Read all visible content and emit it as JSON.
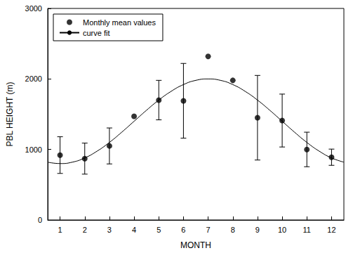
{
  "chart_data": {
    "type": "scatter",
    "xlabel": "MONTH",
    "ylabel": "PBL HEIGHT (m)",
    "xlim": [
      0.5,
      12.5
    ],
    "xticks": [
      1,
      2,
      3,
      4,
      5,
      6,
      7,
      8,
      9,
      10,
      11,
      12
    ],
    "ylim": [
      0,
      3000
    ],
    "yticks": [
      0,
      1000,
      2000,
      3000
    ],
    "grid": false,
    "legend": "upper left",
    "series": [
      {
        "name": "Monthly mean values",
        "type": "scatter",
        "color": "#000000",
        "marker": "circle",
        "x": [
          1,
          2,
          3,
          4,
          5,
          6,
          7,
          8,
          9,
          10,
          11,
          12
        ],
        "values": [
          920,
          870,
          1050,
          1470,
          1700,
          1690,
          2320,
          1980,
          1450,
          1410,
          1000,
          890
        ],
        "error": [
          260,
          220,
          255,
          null,
          280,
          530,
          null,
          null,
          600,
          375,
          245,
          115
        ]
      },
      {
        "name": "curve fit",
        "type": "line",
        "color": "#000000",
        "line_style": "solid",
        "x": [
          0.5,
          1,
          1.5,
          2,
          2.5,
          3,
          3.5,
          4,
          4.5,
          5,
          5.5,
          6,
          6.5,
          7,
          7.5,
          8,
          8.5,
          9,
          9.5,
          10,
          10.5,
          11,
          11.5,
          12,
          12.5
        ],
        "values": [
          820,
          800,
          820,
          880,
          976,
          1100,
          1245,
          1400,
          1555,
          1700,
          1824,
          1920,
          1980,
          2000,
          1980,
          1920,
          1824,
          1700,
          1555,
          1400,
          1245,
          1100,
          976,
          880,
          820
        ]
      }
    ]
  }
}
